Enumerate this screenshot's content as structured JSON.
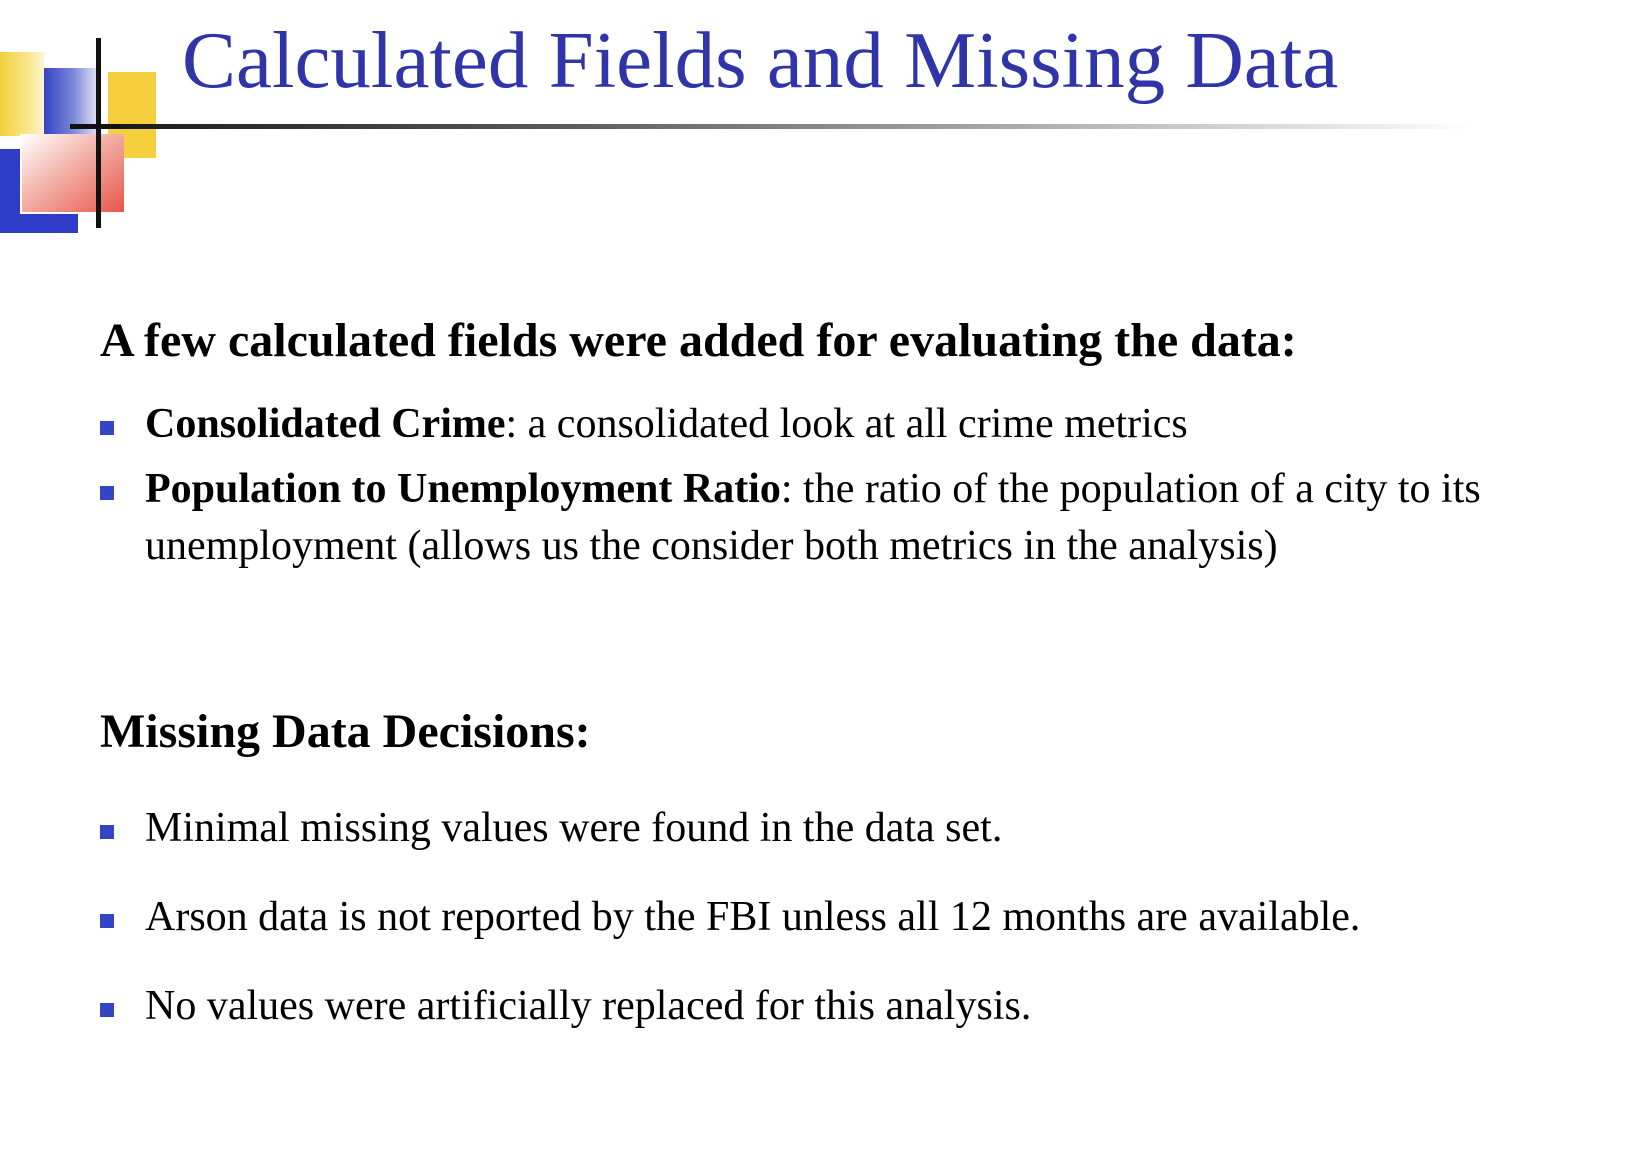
{
  "slide": {
    "title": "Calculated Fields and Missing Data"
  },
  "sections": [
    {
      "heading": "A few calculated fields were added for evaluating the data:",
      "items": [
        {
          "term": "Consolidated Crime",
          "description": ": a consolidated look at all crime metrics"
        },
        {
          "term": "Population to Unemployment Ratio",
          "description": ": the ratio of the population of a city to its unemployment (allows us the consider both metrics in the analysis)"
        }
      ]
    },
    {
      "heading": "Missing Data Decisions:",
      "items": [
        {
          "text": "Minimal missing values were found in the data set."
        },
        {
          "text": "Arson data is not reported by the FBI unless all 12 months are available."
        },
        {
          "text": "No values were artificially replaced for this analysis."
        }
      ]
    }
  ],
  "colors": {
    "title": "#2f35a8",
    "bullet_marker": "#3344c4",
    "accent_yellow": "#f5cf3e",
    "accent_blue": "#2f3cc8",
    "accent_red": "#e8554a"
  }
}
